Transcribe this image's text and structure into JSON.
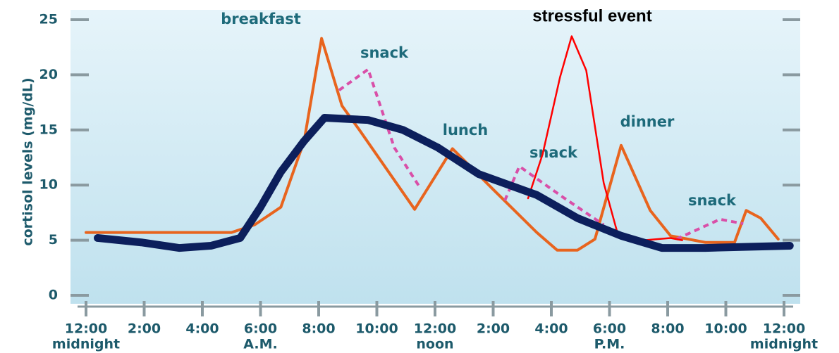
{
  "chart_data": {
    "type": "line",
    "ylabel": "cortisol levels (mg/dL)",
    "xlim": [
      0,
      24
    ],
    "ylim": [
      0,
      25
    ],
    "yticks": [
      0,
      5,
      10,
      15,
      20,
      25
    ],
    "xticks": [
      {
        "value": 0,
        "label": "12:00"
      },
      {
        "value": 2,
        "label": "2:00"
      },
      {
        "value": 4,
        "label": "4:00"
      },
      {
        "value": 6,
        "label": "6:00"
      },
      {
        "value": 8,
        "label": "8:00"
      },
      {
        "value": 10,
        "label": "10:00"
      },
      {
        "value": 12,
        "label": "12:00"
      },
      {
        "value": 14,
        "label": "2:00"
      },
      {
        "value": 16,
        "label": "4:00"
      },
      {
        "value": 18,
        "label": "6:00"
      },
      {
        "value": 20,
        "label": "8:00"
      },
      {
        "value": 22,
        "label": "10:00"
      },
      {
        "value": 24,
        "label": "12:00"
      }
    ],
    "xtick_sublabels": [
      {
        "value": 0,
        "label": "midnight"
      },
      {
        "value": 6,
        "label": "A.M."
      },
      {
        "value": 12,
        "label": "noon"
      },
      {
        "value": 18,
        "label": "P.M."
      },
      {
        "value": 24,
        "label": "midnight"
      }
    ],
    "annotations": [
      "breakfast",
      "snack",
      "lunch",
      "snack",
      "dinner",
      "snack",
      "stressful event"
    ],
    "series": [
      {
        "color": "#e8641e",
        "x": [
          0,
          5,
          5.8,
          6.7,
          7.5,
          8.1,
          8.8,
          9.4,
          11.3,
          12.6,
          14,
          15.5,
          16.2,
          16.9,
          17.5,
          18.4,
          19.4,
          20.1,
          21.3,
          22.3,
          22.7,
          23.2,
          23.8
        ],
        "values": [
          5.7,
          5.7,
          6.4,
          8,
          14,
          23.3,
          17.2,
          15,
          7.8,
          13.3,
          9.6,
          5.7,
          4.1,
          4.1,
          5.1,
          13.6,
          7.7,
          5.4,
          4.8,
          4.8,
          7.7,
          7,
          5.1
        ]
      },
      {
        "color": "#d94fa8",
        "dashed": true,
        "x": [
          8.7,
          9.7,
          10.6,
          11.5,
          null,
          14.4,
          14.9,
          16.4,
          17.8,
          null,
          20.3,
          21.8,
          22.6
        ],
        "values": [
          18.6,
          20.5,
          13.4,
          9.7,
          null,
          8.6,
          11.7,
          8.9,
          6.4,
          null,
          5.1,
          6.9,
          6.5
        ]
      },
      {
        "color": "#ff0000",
        "x": [
          15.2,
          15.7,
          16.3,
          16.7,
          17.2,
          17.8,
          18.3,
          19.2,
          20.1,
          20.5
        ],
        "values": [
          8.8,
          12.8,
          19.8,
          23.5,
          20.4,
          10.2,
          5.4,
          5,
          5.2,
          5
        ]
      },
      {
        "color": "#0c1f5c",
        "x": [
          0.4,
          1.9,
          3.2,
          4.3,
          5.3,
          6,
          6.7,
          7.5,
          8.2,
          9.7,
          10.9,
          12.1,
          13.5,
          15.5,
          16.9,
          18.4,
          19.8,
          21.3,
          24.2
        ],
        "values": [
          5.2,
          4.8,
          4.3,
          4.5,
          5.2,
          8,
          11.2,
          14,
          16.1,
          15.9,
          15,
          13.4,
          11,
          9.1,
          7,
          5.4,
          4.3,
          4.3,
          4.5
        ]
      }
    ]
  }
}
